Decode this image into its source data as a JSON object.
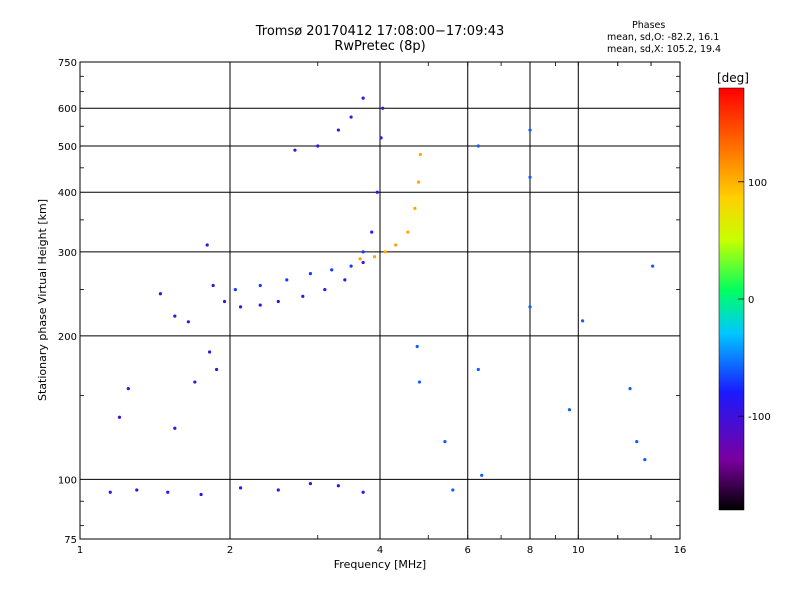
{
  "header": {
    "title_line1": "Tromsø 20170412 17:08:00−17:09:43",
    "title_line2": "RwPretec (8p)"
  },
  "phase_info": {
    "heading": "Phases",
    "line_o": "mean, sd,O: -82.2, 16.1",
    "line_x": "mean, sd,X: 105.2, 19.4"
  },
  "chart_data": {
    "type": "scatter",
    "xlabel": "Frequency [MHz]",
    "ylabel": "Stationary phase Virtual Height [km]",
    "x_scale": "log",
    "y_scale": "log",
    "xlim": [
      1,
      16
    ],
    "ylim": [
      75,
      750
    ],
    "x_ticks": [
      1,
      2,
      4,
      6,
      8,
      10,
      16
    ],
    "y_ticks": [
      75,
      100,
      200,
      300,
      400,
      500,
      600,
      750
    ],
    "grid": true,
    "colorbar": {
      "label": "[deg]",
      "range": [
        -180,
        180
      ],
      "ticks": [
        100,
        0,
        -100
      ]
    },
    "series": [
      {
        "values": [
          [
            1.45,
            245
          ],
          [
            1.55,
            220
          ],
          [
            1.65,
            214
          ],
          [
            1.8,
            310
          ],
          [
            1.85,
            255
          ],
          [
            1.95,
            236
          ],
          [
            2.1,
            230
          ],
          [
            2.3,
            232
          ],
          [
            2.5,
            236
          ],
          [
            2.8,
            242
          ],
          [
            3.1,
            250
          ],
          [
            3.4,
            262
          ],
          [
            3.7,
            285
          ],
          [
            3.85,
            330
          ],
          [
            3.95,
            400
          ],
          [
            4.02,
            520
          ],
          [
            4.05,
            600
          ]
        ]
      },
      {
        "values": [
          [
            2.05,
            250
          ],
          [
            2.3,
            255
          ],
          [
            2.6,
            262
          ],
          [
            2.9,
            270
          ],
          [
            3.2,
            275
          ],
          [
            3.5,
            280
          ],
          [
            3.7,
            300
          ]
        ]
      },
      {
        "values": [
          [
            3.65,
            290
          ],
          [
            3.9,
            293
          ],
          [
            4.1,
            300
          ],
          [
            4.3,
            310
          ],
          [
            4.55,
            330
          ],
          [
            4.7,
            370
          ],
          [
            4.78,
            420
          ],
          [
            4.82,
            480
          ]
        ]
      },
      {
        "values": [
          [
            2.7,
            490
          ],
          [
            3.0,
            500
          ],
          [
            3.3,
            540
          ],
          [
            3.5,
            575
          ],
          [
            3.7,
            630
          ]
        ]
      },
      {
        "values": [
          [
            1.15,
            94
          ],
          [
            1.3,
            95
          ],
          [
            1.5,
            94
          ],
          [
            1.75,
            93
          ],
          [
            2.1,
            96
          ],
          [
            2.5,
            95
          ],
          [
            2.9,
            98
          ],
          [
            3.3,
            97
          ],
          [
            3.7,
            94
          ]
        ]
      },
      {
        "values": [
          [
            1.55,
            128
          ],
          [
            1.7,
            160
          ],
          [
            1.82,
            185
          ],
          [
            1.88,
            170
          ],
          [
            1.2,
            135
          ],
          [
            1.25,
            155
          ]
        ]
      },
      {
        "values": [
          [
            6.3,
            500
          ],
          [
            6.3,
            170
          ],
          [
            6.4,
            102
          ],
          [
            8.0,
            540
          ],
          [
            8.0,
            430
          ],
          [
            8.0,
            230
          ],
          [
            9.6,
            140
          ],
          [
            10.2,
            215
          ],
          [
            12.7,
            155
          ],
          [
            13.1,
            120
          ],
          [
            13.6,
            110
          ],
          [
            14.1,
            280
          ],
          [
            5.6,
            95
          ],
          [
            5.4,
            120
          ],
          [
            4.8,
            160
          ],
          [
            4.75,
            190
          ]
        ]
      }
    ]
  }
}
